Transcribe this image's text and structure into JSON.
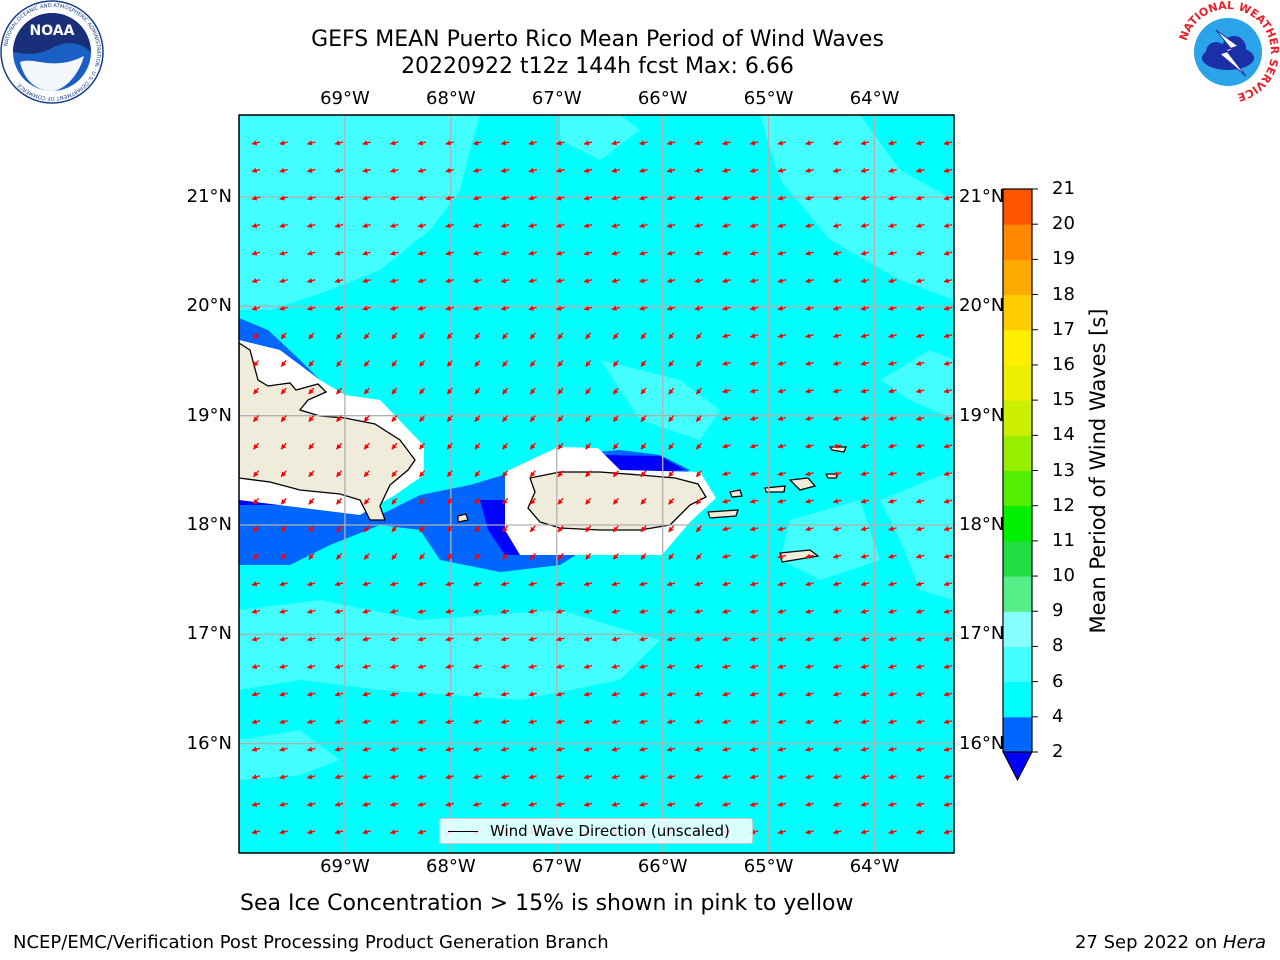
{
  "title": {
    "line1": "GEFS MEAN Puerto Rico Mean Period of Wind Waves",
    "line2": "20220922 t12z 144h fcst   Max: 6.66"
  },
  "logos": {
    "noaa": {
      "text": "NOAA",
      "ring_text": "NATIONAL OCEANIC AND ATMOSPHERIC ADMINISTRATION · U.S. DEPARTMENT OF COMMERCE",
      "icon": "noaa-logo"
    },
    "nws": {
      "ring_text": "NATIONAL WEATHER SERVICE",
      "icon": "nws-logo"
    }
  },
  "map": {
    "lon_ticks": [
      "69°W",
      "68°W",
      "67°W",
      "66°W",
      "65°W",
      "64°W"
    ],
    "lon_values": [
      -69,
      -68,
      -67,
      -66,
      -65,
      -64
    ],
    "lat_ticks": [
      "21°N",
      "20°N",
      "19°N",
      "18°N",
      "17°N",
      "16°N"
    ],
    "lat_values": [
      21,
      20,
      19,
      18,
      17,
      16
    ],
    "lon_range": [
      -70.0,
      -63.25
    ],
    "lat_range": [
      15.0,
      21.75
    ],
    "grid": true,
    "arrow_color": "#ff0000",
    "dominant_direction": "toward west-southwest",
    "legend": {
      "label": "Wind Wave Direction (unscaled)",
      "placement": "bottom-center"
    },
    "land_color": "#efecdc",
    "features": [
      "Hispaniola (east)",
      "Puerto Rico",
      "Mona Island",
      "Virgin Islands",
      "St. Croix"
    ]
  },
  "colorbar": {
    "label": "Mean Period of Wind Waves [s]",
    "ticks": [
      "2",
      "4",
      "6",
      "8",
      "9",
      "10",
      "11",
      "12",
      "13",
      "14",
      "15",
      "16",
      "17",
      "18",
      "19",
      "20",
      "21"
    ],
    "bounds": [
      2,
      4,
      6,
      8,
      9,
      10,
      11,
      12,
      13,
      14,
      15,
      16,
      17,
      18,
      19,
      20,
      21
    ],
    "colors": [
      "#0066ff",
      "#00ffff",
      "#44ffff",
      "#88ffff",
      "#55ee88",
      "#22dd44",
      "#00ee00",
      "#55ee00",
      "#99ee00",
      "#ccee00",
      "#eeee00",
      "#ffee00",
      "#ffcc00",
      "#ffaa00",
      "#ff8800",
      "#ff5500",
      "#ff2200"
    ],
    "under_color": "#0000ff"
  },
  "contour_colors": {
    "lt2": "#0000ff",
    "2to4": "#0066ff",
    "4to6": "#00ffff",
    "6to8": "#44ffff"
  },
  "notes": {
    "sea_ice": "Sea Ice Concentration > 15% is shown in pink to yellow"
  },
  "footer": {
    "left": "NCEP/EMC/Verification Post Processing Product Generation Branch",
    "right_prefix": "27 Sep 2022 on ",
    "right_host": "Hera"
  }
}
